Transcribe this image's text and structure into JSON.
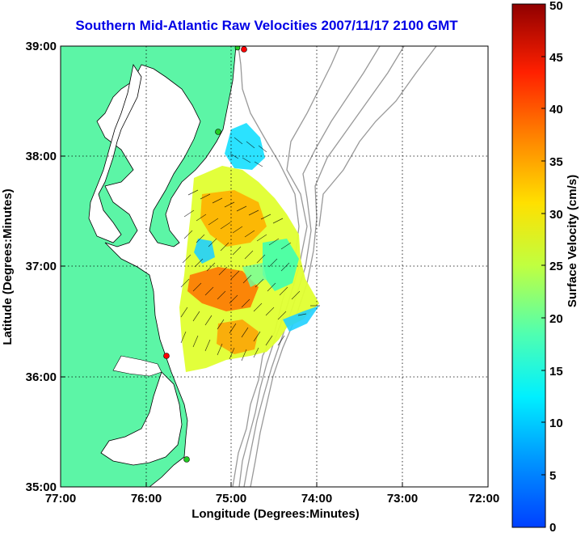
{
  "title": "Southern Mid-Atlantic Raw Velocities 2007/11/17 2100 GMT",
  "map": {
    "xlabel": "Longitude (Degrees:Minutes)",
    "ylabel": "Latitude (Degrees:Minutes)",
    "x_ticks": [
      "77:00",
      "76:00",
      "75:00",
      "74:00",
      "73:00",
      "72:00"
    ],
    "y_ticks": [
      "39:00",
      "38:00",
      "37:00",
      "36:00",
      "35:00"
    ],
    "lon_range": [
      -77,
      -72
    ],
    "lat_range": [
      35,
      39
    ],
    "grid": "dotted",
    "colors": {
      "land": "#5cf5a6",
      "coast": "#000000",
      "bathymetry": "#999999",
      "station_red": "#ff0000",
      "station_green": "#22cc22"
    }
  },
  "colorbar": {
    "label": "Surface Velocity (cm/s)",
    "ticks": [
      "50",
      "45",
      "40",
      "35",
      "30",
      "25",
      "20",
      "15",
      "10",
      "5",
      "0"
    ],
    "range": [
      0,
      50
    ],
    "colormap": "jet"
  }
}
